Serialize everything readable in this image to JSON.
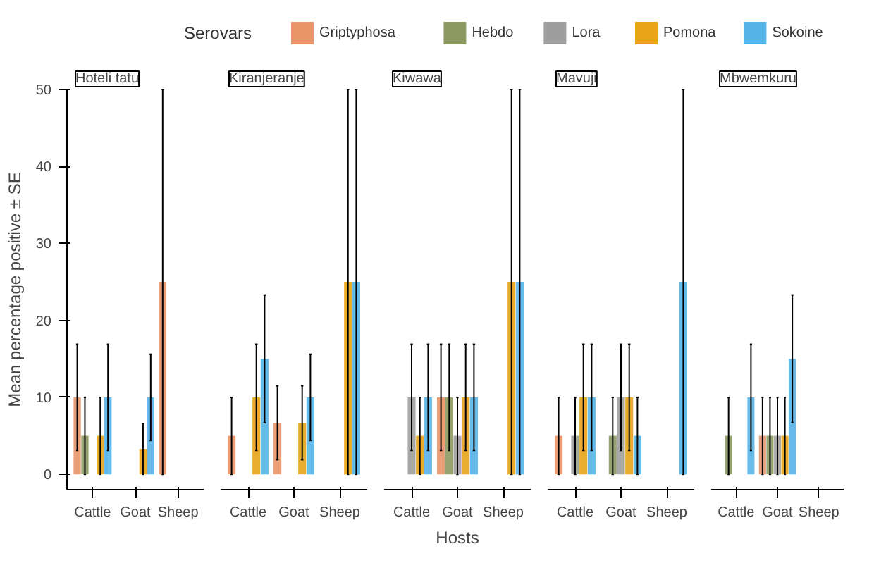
{
  "chart_data": [
    {
      "type": "bar",
      "title": "Hoteli tatu",
      "ylabel": "Mean percentage positive ± SE",
      "legend_title": "Serovars",
      "legend": "top",
      "grid": false,
      "categories": [
        "Cattle",
        "Goat",
        "Sheep"
      ],
      "ylim": [
        -2,
        50
      ],
      "yticks": [
        0,
        10,
        20,
        30,
        40,
        50
      ],
      "series": [
        {
          "name": "Griptyphosa",
          "color": "#e9956a",
          "values": [
            10,
            0,
            25
          ],
          "errors": [
            6.9,
            0,
            25
          ]
        },
        {
          "name": "Hebdo",
          "color": "#8c9a62",
          "values": [
            5,
            0,
            0
          ],
          "errors": [
            5,
            0,
            0
          ]
        },
        {
          "name": "Lora",
          "color": "#9e9e9e",
          "values": [
            0,
            0,
            0
          ],
          "errors": [
            0,
            0,
            0
          ]
        },
        {
          "name": "Pomona",
          "color": "#e8a317",
          "values": [
            5,
            3.3,
            0
          ],
          "errors": [
            5,
            3.3,
            0
          ]
        },
        {
          "name": "Sokoine",
          "color": "#56b4e9",
          "values": [
            10,
            10,
            0
          ],
          "errors": [
            6.9,
            5.6,
            0
          ]
        }
      ]
    },
    {
      "type": "bar",
      "title": "Kiranjeranje",
      "grid": false,
      "tick_labels": "x",
      "categories": [
        "Cattle",
        "Goat",
        "Sheep"
      ],
      "ylim": [
        -2,
        50
      ],
      "yticks": [
        0,
        10,
        20,
        30,
        40,
        50
      ],
      "series": [
        {
          "color": "#e9956a",
          "values": [
            5,
            6.7,
            0
          ],
          "errors": [
            5,
            4.8,
            0
          ]
        },
        {
          "color": "#8c9a62",
          "values": [
            0,
            0,
            0
          ],
          "errors": [
            0,
            0,
            0
          ]
        },
        {
          "color": "#9e9e9e",
          "values": [
            0,
            0,
            0
          ],
          "errors": [
            0,
            0,
            0
          ]
        },
        {
          "color": "#e8a317",
          "values": [
            10,
            6.7,
            25
          ],
          "errors": [
            6.9,
            4.8,
            25
          ]
        },
        {
          "color": "#56b4e9",
          "values": [
            15,
            10,
            25
          ],
          "errors": [
            8.3,
            5.6,
            25
          ]
        }
      ]
    },
    {
      "type": "bar",
      "title": "Kiwawa",
      "xlabel": "Hosts",
      "grid": false,
      "tick_labels": "x",
      "categories": [
        "Cattle",
        "Goat",
        "Sheep"
      ],
      "ylim": [
        -2,
        50
      ],
      "yticks": [
        0,
        10,
        20,
        30,
        40,
        50
      ],
      "series": [
        {
          "color": "#e9956a",
          "values": [
            0,
            10,
            0
          ],
          "errors": [
            0,
            6.9,
            0
          ]
        },
        {
          "color": "#8c9a62",
          "values": [
            0,
            10,
            0
          ],
          "errors": [
            0,
            6.9,
            0
          ]
        },
        {
          "color": "#9e9e9e",
          "values": [
            10,
            5,
            0
          ],
          "errors": [
            6.9,
            5,
            0
          ]
        },
        {
          "color": "#e8a317",
          "values": [
            5,
            10,
            25
          ],
          "errors": [
            5,
            6.9,
            25
          ]
        },
        {
          "color": "#56b4e9",
          "values": [
            10,
            10,
            25
          ],
          "errors": [
            6.9,
            6.9,
            25
          ]
        }
      ]
    },
    {
      "type": "bar",
      "title": "Mavuji",
      "grid": false,
      "tick_labels": "x",
      "categories": [
        "Cattle",
        "Goat",
        "Sheep"
      ],
      "ylim": [
        -2,
        50
      ],
      "yticks": [
        0,
        10,
        20,
        30,
        40,
        50
      ],
      "series": [
        {
          "color": "#e9956a",
          "values": [
            5,
            0,
            0
          ],
          "errors": [
            5,
            0,
            0
          ]
        },
        {
          "color": "#8c9a62",
          "values": [
            0,
            5,
            0
          ],
          "errors": [
            0,
            5,
            0
          ]
        },
        {
          "color": "#9e9e9e",
          "values": [
            5,
            10,
            0
          ],
          "errors": [
            5,
            6.9,
            0
          ]
        },
        {
          "color": "#e8a317",
          "values": [
            10,
            10,
            0
          ],
          "errors": [
            6.9,
            6.9,
            0
          ]
        },
        {
          "color": "#56b4e9",
          "values": [
            10,
            5,
            25
          ],
          "errors": [
            6.9,
            5,
            25
          ]
        }
      ]
    },
    {
      "type": "bar",
      "title": "Mbwemkuru",
      "grid": false,
      "tick_labels": "x",
      "categories": [
        "Cattle",
        "Goat",
        "Sheep"
      ],
      "ylim": [
        -2,
        50
      ],
      "yticks": [
        0,
        10,
        20,
        30,
        40,
        50
      ],
      "series": [
        {
          "color": "#e9956a",
          "values": [
            0,
            5,
            0
          ],
          "errors": [
            0,
            5,
            0
          ]
        },
        {
          "color": "#8c9a62",
          "values": [
            5,
            5,
            0
          ],
          "errors": [
            5,
            5,
            0
          ]
        },
        {
          "color": "#9e9e9e",
          "values": [
            0,
            5,
            0
          ],
          "errors": [
            0,
            5,
            0
          ]
        },
        {
          "color": "#e8a317",
          "values": [
            0,
            5,
            0
          ],
          "errors": [
            0,
            5,
            0
          ]
        },
        {
          "color": "#56b4e9",
          "values": [
            10,
            15,
            0
          ],
          "errors": [
            6.9,
            8.3,
            0
          ]
        }
      ]
    }
  ]
}
